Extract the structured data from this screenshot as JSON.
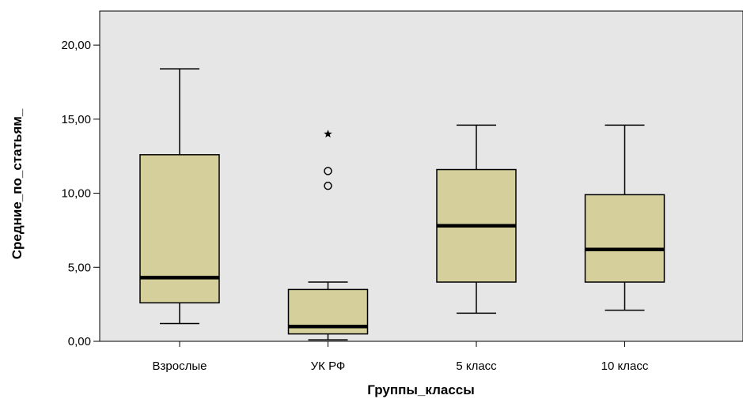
{
  "chart_data": {
    "type": "box",
    "xlabel": "Группы_классы",
    "ylabel": "Средние_по_статьям_",
    "ylim": [
      0,
      22.3
    ],
    "yticks": [
      0,
      5,
      10,
      15,
      20
    ],
    "ytick_labels": [
      "0,00",
      "5,00",
      "10,00",
      "15,00",
      "20,00"
    ],
    "grid": false,
    "categories": [
      "Взрослые",
      "УК РФ",
      "5 класс",
      "10 класс"
    ],
    "boxes": [
      {
        "whisker_low": 1.2,
        "q1": 2.6,
        "median": 4.3,
        "q3": 12.6,
        "whisker_high": 18.4,
        "outliers": [],
        "extremes": []
      },
      {
        "whisker_low": 0.1,
        "q1": 0.5,
        "median": 1.0,
        "q3": 3.5,
        "whisker_high": 4.0,
        "outliers": [
          10.5,
          11.5
        ],
        "extremes": [
          14.0
        ]
      },
      {
        "whisker_low": 1.9,
        "q1": 4.0,
        "median": 7.8,
        "q3": 11.6,
        "whisker_high": 14.6,
        "outliers": [],
        "extremes": []
      },
      {
        "whisker_low": 2.1,
        "q1": 4.0,
        "median": 6.2,
        "q3": 9.9,
        "whisker_high": 14.6,
        "outliers": [],
        "extremes": []
      }
    ],
    "colors": {
      "plot_background": "#e6e6e6",
      "box_fill": "#d5cf9b",
      "line": "#000000"
    }
  }
}
